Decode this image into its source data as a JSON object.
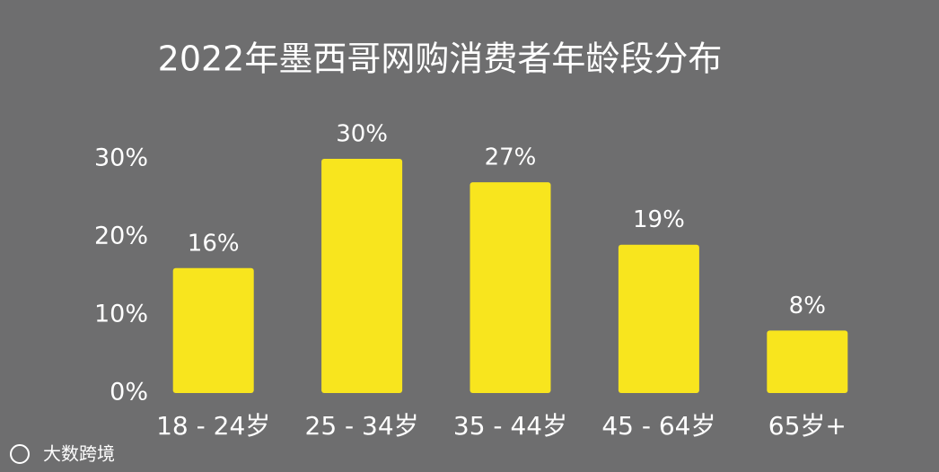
{
  "chart_data": {
    "type": "bar",
    "title": "2022年墨西哥网购消费者年龄段分布",
    "categories": [
      "18 - 24岁",
      "25 - 34岁",
      "35 - 44岁",
      "45 - 64岁",
      "65岁+"
    ],
    "values": [
      16,
      30,
      27,
      19,
      8
    ],
    "value_labels": [
      "16%",
      "30%",
      "27%",
      "19%",
      "8%"
    ],
    "color": "#f8e51e",
    "ylim": [
      0,
      30
    ],
    "yticks": [
      {
        "value": 0,
        "label": "0%"
      },
      {
        "value": 10,
        "label": "10%"
      },
      {
        "value": 20,
        "label": "20%"
      },
      {
        "value": 30,
        "label": "30%"
      }
    ],
    "grid": false
  },
  "watermark": "大数跨境"
}
